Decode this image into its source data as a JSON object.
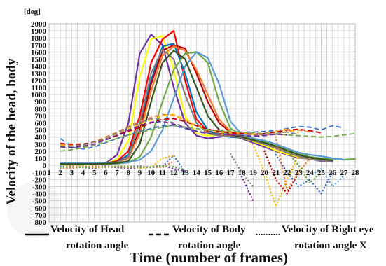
{
  "chart_data": {
    "type": "line",
    "title": "",
    "ylabel": "Velocity of the head, body",
    "yunit": "[deg]",
    "xlabel": "Time (number of frames)",
    "ylim": [
      -800,
      2000
    ],
    "yticks": [
      -800,
      -700,
      -600,
      -500,
      -400,
      -300,
      -200,
      -100,
      0,
      100,
      200,
      300,
      400,
      500,
      600,
      700,
      800,
      900,
      1000,
      1100,
      1200,
      1300,
      1400,
      1500,
      1600,
      1700,
      1800,
      1900,
      2000
    ],
    "xlim": [
      1,
      28
    ],
    "xticks": [
      1,
      2,
      3,
      4,
      5,
      6,
      7,
      8,
      9,
      10,
      11,
      12,
      13,
      14,
      15,
      16,
      17,
      18,
      19,
      20,
      21,
      22,
      23,
      24,
      25,
      26,
      27,
      28
    ],
    "grid": true,
    "legend": {
      "placement": "bottom",
      "entries": [
        {
          "style": "solid",
          "line1": "Velocity of Head",
          "line2": "rotation angle"
        },
        {
          "style": "dashed",
          "line1": "Velocity of Body",
          "line2": "rotation angle"
        },
        {
          "style": "dotted",
          "line1": "Velocity of Right eye",
          "line2": "rotation angle X"
        }
      ]
    },
    "series": [
      {
        "group": "head",
        "color": "#7030a0",
        "x": [
          2,
          3,
          4,
          5,
          6,
          7,
          8,
          9,
          10,
          11,
          12,
          13,
          14,
          15,
          16,
          17,
          18,
          19,
          20,
          21,
          22,
          23,
          24,
          25,
          26
        ],
        "y": [
          20,
          20,
          20,
          20,
          30,
          150,
          600,
          1580,
          1850,
          1700,
          1100,
          600,
          420,
          380,
          400,
          420,
          380,
          320,
          260,
          200,
          150,
          110,
          90,
          60,
          50
        ]
      },
      {
        "group": "head",
        "color": "#ffff00",
        "x": [
          2,
          3,
          4,
          5,
          6,
          7,
          8,
          9,
          10,
          11,
          12,
          13,
          14,
          15,
          16,
          17,
          18,
          19,
          20,
          21,
          22,
          23,
          24,
          25,
          26
        ],
        "y": [
          10,
          10,
          15,
          20,
          30,
          80,
          350,
          1250,
          1780,
          1830,
          1350,
          700,
          450,
          420,
          430,
          420,
          390,
          340,
          280,
          210,
          160,
          120,
          90,
          70,
          60
        ]
      },
      {
        "group": "head",
        "color": "#ff0000",
        "x": [
          2,
          3,
          4,
          5,
          6,
          7,
          8,
          9,
          10,
          11,
          12,
          13,
          14,
          15,
          16,
          17,
          18,
          19,
          20,
          21,
          22,
          23,
          24,
          25,
          26
        ],
        "y": [
          20,
          20,
          20,
          25,
          30,
          60,
          200,
          700,
          1450,
          1780,
          1900,
          1200,
          650,
          480,
          450,
          430,
          400,
          350,
          300,
          250,
          180,
          130,
          100,
          80,
          60
        ]
      },
      {
        "group": "head",
        "color": "#0070c0",
        "x": [
          2,
          3,
          4,
          5,
          6,
          7,
          8,
          9,
          10,
          11,
          12,
          13,
          14,
          15,
          16,
          17,
          18,
          19,
          20,
          21,
          22,
          23,
          24,
          25,
          26
        ],
        "y": [
          30,
          30,
          30,
          30,
          35,
          50,
          150,
          600,
          1200,
          1680,
          1720,
          1300,
          750,
          500,
          420,
          400,
          390,
          360,
          310,
          260,
          200,
          150,
          110,
          80,
          60
        ]
      },
      {
        "group": "head",
        "color": "#c00000",
        "x": [
          2,
          3,
          4,
          5,
          6,
          7,
          8,
          9,
          10,
          11,
          12,
          13,
          14,
          15,
          16,
          17,
          18,
          19,
          20,
          21,
          22,
          23,
          24,
          25,
          26
        ],
        "y": [
          25,
          25,
          25,
          25,
          30,
          50,
          120,
          500,
          1150,
          1620,
          1700,
          1650,
          1300,
          900,
          600,
          470,
          420,
          380,
          340,
          280,
          210,
          150,
          100,
          80,
          60
        ]
      },
      {
        "group": "head",
        "color": "#ed7d31",
        "x": [
          2,
          3,
          4,
          5,
          6,
          7,
          8,
          9,
          10,
          11,
          12,
          13,
          14,
          15,
          16,
          17,
          18,
          19,
          20,
          21,
          22,
          23,
          24,
          25,
          26
        ],
        "y": [
          20,
          20,
          20,
          25,
          30,
          40,
          100,
          450,
          1050,
          1550,
          1680,
          1620,
          1350,
          1000,
          650,
          480,
          420,
          370,
          320,
          260,
          200,
          140,
          100,
          80,
          60
        ]
      },
      {
        "group": "head",
        "color": "#7f7f7f",
        "x": [
          2,
          3,
          4,
          5,
          6,
          7,
          8,
          9,
          10,
          11,
          12,
          13,
          14,
          15,
          16,
          17,
          18,
          19,
          20,
          21,
          22,
          23,
          24,
          25,
          26
        ],
        "y": [
          15,
          15,
          15,
          20,
          25,
          40,
          120,
          600,
          1300,
          1640,
          1500,
          1000,
          600,
          450,
          420,
          410,
          390,
          350,
          300,
          240,
          180,
          130,
          90,
          70,
          60
        ]
      },
      {
        "group": "head",
        "color": "#70ad47",
        "x": [
          2,
          3,
          4,
          5,
          6,
          7,
          8,
          9,
          10,
          11,
          12,
          13,
          14,
          15,
          16,
          17,
          18,
          19,
          20,
          21,
          22,
          23,
          24,
          25,
          26,
          27,
          28
        ],
        "y": [
          10,
          10,
          10,
          15,
          20,
          25,
          40,
          120,
          400,
          900,
          1350,
          1580,
          1600,
          1450,
          900,
          520,
          430,
          380,
          340,
          290,
          230,
          170,
          120,
          100,
          90,
          80,
          90
        ]
      },
      {
        "group": "head",
        "color": "#5b9bd5",
        "x": [
          2,
          3,
          4,
          5,
          6,
          7,
          8,
          9,
          10,
          11,
          12,
          13,
          14,
          15,
          16,
          17,
          18,
          19,
          20,
          21,
          22,
          23,
          24,
          25,
          26,
          27
        ],
        "y": [
          30,
          30,
          30,
          30,
          30,
          35,
          40,
          80,
          200,
          500,
          950,
          1400,
          1600,
          1520,
          1150,
          620,
          440,
          380,
          350,
          300,
          240,
          180,
          150,
          130,
          100,
          80
        ]
      },
      {
        "group": "head",
        "color": "#375623",
        "x": [
          2,
          3,
          4,
          5,
          6,
          7,
          8,
          9,
          10,
          11,
          12,
          13,
          14,
          15,
          16,
          17,
          18,
          19,
          20,
          21,
          22,
          23,
          24,
          25,
          26
        ],
        "y": [
          20,
          20,
          20,
          20,
          25,
          30,
          60,
          300,
          900,
          1450,
          1620,
          1500,
          1100,
          700,
          500,
          440,
          400,
          360,
          320,
          270,
          210,
          150,
          110,
          90,
          70
        ]
      },
      {
        "group": "body",
        "color": "#4472c4",
        "x": [
          2,
          3,
          4,
          5,
          6,
          7,
          8,
          9,
          10,
          11,
          12,
          13,
          14,
          15,
          16,
          17,
          18,
          19,
          20,
          21,
          22,
          23,
          24,
          25,
          26,
          27
        ],
        "y": [
          380,
          260,
          230,
          260,
          320,
          380,
          430,
          480,
          520,
          560,
          560,
          520,
          480,
          450,
          450,
          460,
          470,
          470,
          480,
          490,
          520,
          550,
          540,
          500,
          560,
          530
        ]
      },
      {
        "group": "body",
        "color": "#ed7d31",
        "x": [
          2,
          3,
          4,
          5,
          6,
          7,
          8,
          9,
          10,
          11,
          12,
          13,
          14,
          15,
          16,
          17,
          18,
          19,
          20,
          21,
          22,
          23,
          24
        ],
        "y": [
          300,
          280,
          280,
          330,
          400,
          470,
          550,
          620,
          680,
          720,
          700,
          640,
          560,
          500,
          480,
          470,
          460,
          440,
          430,
          440,
          480,
          500,
          470
        ]
      },
      {
        "group": "body",
        "color": "#ffc000",
        "x": [
          2,
          3,
          4,
          5,
          6,
          7,
          8,
          9,
          10,
          11,
          12,
          13,
          14,
          15,
          16,
          17,
          18,
          19,
          20,
          21,
          22,
          23
        ],
        "y": [
          280,
          270,
          290,
          330,
          380,
          450,
          520,
          580,
          640,
          700,
          720,
          650,
          560,
          500,
          470,
          460,
          450,
          440,
          450,
          480,
          510,
          460
        ]
      },
      {
        "group": "body",
        "color": "#c00000",
        "x": [
          2,
          3,
          4,
          5,
          6,
          7,
          8,
          9,
          10,
          11,
          12,
          13,
          14,
          15,
          16,
          17,
          18,
          19,
          20,
          21,
          22,
          23,
          24,
          25
        ],
        "y": [
          310,
          300,
          300,
          330,
          360,
          420,
          480,
          540,
          600,
          650,
          660,
          620,
          560,
          510,
          480,
          460,
          450,
          440,
          450,
          470,
          500,
          510,
          490,
          460
        ]
      },
      {
        "group": "body",
        "color": "#70ad47",
        "x": [
          2,
          3,
          4,
          5,
          6,
          7,
          8,
          9,
          10,
          11,
          12,
          13,
          14,
          15,
          16,
          17,
          18,
          19,
          20,
          21,
          22,
          23,
          24,
          25,
          26,
          27,
          28
        ],
        "y": [
          200,
          220,
          250,
          280,
          330,
          380,
          430,
          470,
          500,
          540,
          560,
          540,
          520,
          500,
          490,
          480,
          470,
          460,
          450,
          440,
          430,
          420,
          410,
          400,
          410,
          430,
          450
        ]
      },
      {
        "group": "body",
        "color": "#7f7f7f",
        "x": [
          2,
          3,
          4,
          5,
          6,
          7,
          8,
          9,
          10,
          11,
          12,
          13,
          14,
          15,
          16,
          17,
          18,
          19,
          20,
          21,
          22,
          23
        ],
        "y": [
          270,
          270,
          290,
          330,
          380,
          460,
          540,
          600,
          660,
          650,
          600,
          540,
          490,
          460,
          450,
          440,
          430,
          420,
          430,
          450,
          470,
          440
        ]
      },
      {
        "group": "body",
        "color": "#7030a0",
        "x": [
          2,
          3,
          4,
          5,
          6,
          7,
          8,
          9,
          10,
          11,
          12,
          13,
          14,
          15,
          16,
          17,
          18,
          19,
          20,
          21,
          22
        ],
        "y": [
          260,
          250,
          270,
          300,
          360,
          430,
          500,
          560,
          610,
          620,
          580,
          530,
          480,
          450,
          440,
          430,
          420,
          410,
          420,
          440,
          430
        ]
      },
      {
        "group": "eye",
        "color": "#7030a0",
        "x": [
          2,
          3,
          4,
          5,
          6,
          7,
          8,
          9,
          10,
          11,
          12,
          13
        ],
        "y": [
          -20,
          -10,
          -30,
          -40,
          -20,
          -30,
          -40,
          -30,
          -20,
          0,
          -50,
          -80
        ]
      },
      {
        "group": "eye",
        "color": "#ffc000",
        "x": [
          2,
          3,
          4,
          5,
          6,
          7,
          8,
          9,
          10,
          11,
          12
        ],
        "y": [
          0,
          -20,
          -10,
          -30,
          -30,
          -20,
          -10,
          -40,
          -30,
          100,
          140
        ]
      },
      {
        "group": "eye",
        "color": "#4472c4",
        "x": [
          2,
          3,
          4,
          5,
          6,
          7,
          8,
          9,
          10,
          11,
          12,
          13
        ],
        "y": [
          -10,
          -30,
          -20,
          -20,
          -10,
          -30,
          -20,
          -10,
          -30,
          -20,
          140,
          -100
        ]
      },
      {
        "group": "eye",
        "color": "#ed7d31",
        "x": [
          2,
          3,
          4,
          5,
          6,
          7,
          8,
          9,
          10,
          11,
          12
        ],
        "y": [
          -40,
          -40,
          -20,
          -10,
          -20,
          -20,
          -30,
          -20,
          -20,
          -30,
          60
        ]
      },
      {
        "group": "eye",
        "color": "#70ad47",
        "x": [
          2,
          3,
          4,
          5,
          6,
          7,
          8,
          9,
          10,
          11,
          12,
          13
        ],
        "y": [
          -30,
          -20,
          -30,
          -20,
          -30,
          -10,
          -20,
          -30,
          -20,
          -10,
          -20,
          -60
        ]
      },
      {
        "group": "eye",
        "color": "#7f7f7f",
        "x": [
          17,
          18,
          19
        ],
        "y": [
          160,
          -100,
          -300
        ]
      },
      {
        "group": "eye",
        "color": "#7030a0",
        "x": [
          18,
          19
        ],
        "y": [
          -160,
          -500
        ]
      },
      {
        "group": "eye",
        "color": "#ffc000",
        "x": [
          19,
          20,
          21,
          22,
          23
        ],
        "y": [
          300,
          -100,
          -580,
          -200,
          140
        ]
      },
      {
        "group": "eye",
        "color": "#c00000",
        "x": [
          20,
          21,
          22,
          23
        ],
        "y": [
          200,
          -200,
          -400,
          -100
        ]
      },
      {
        "group": "eye",
        "color": "#4472c4",
        "x": [
          21,
          22,
          23,
          24,
          25,
          26
        ],
        "y": [
          150,
          -100,
          -300,
          -200,
          -400,
          -100
        ]
      },
      {
        "group": "eye",
        "color": "#ed7d31",
        "x": [
          21,
          22,
          23,
          24
        ],
        "y": [
          400,
          -350,
          -100,
          100
        ]
      },
      {
        "group": "eye",
        "color": "#70ad47",
        "x": [
          22,
          23,
          24,
          25
        ],
        "y": [
          200,
          0,
          -250,
          -100
        ]
      },
      {
        "group": "eye",
        "color": "#5b9bd5",
        "x": [
          24,
          25,
          26,
          27
        ],
        "y": [
          -150,
          -50,
          -300,
          -150
        ]
      }
    ]
  }
}
